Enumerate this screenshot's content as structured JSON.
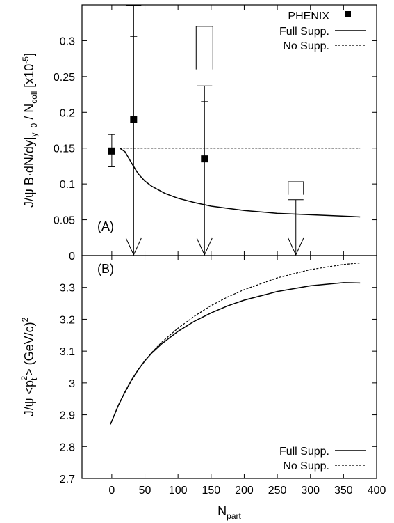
{
  "chart_data": [
    {
      "type": "scatter",
      "panel_label": "(A)",
      "ylabel": "J/ψ  B·dN/dy|y=0 / Ncoll [x10-5]",
      "ylim": [
        0,
        0.35
      ],
      "xlim": [
        -45,
        400
      ],
      "y_ticks": [
        "0",
        "0.05",
        "0.1",
        "0.15",
        "0.2",
        "0.25",
        "0.3"
      ],
      "legend_position": "top-right",
      "series": [
        {
          "name": "PHENIX",
          "kind": "points",
          "points": [
            {
              "x": 0,
              "y": 0.146,
              "err_low": 0.124,
              "err_high": 0.169,
              "type": "point"
            },
            {
              "x": 33,
              "y": 0.19,
              "err_low": 0.306,
              "err_high": 0.349,
              "type": "point-upper-error"
            },
            {
              "x": 140,
              "y": 0.135,
              "err_low": 0.215,
              "err_high": 0.237,
              "type": "point-upper-error"
            },
            {
              "x": 140,
              "upper_limit": 0.237,
              "sys_low": 0.26,
              "sys_high": 0.32,
              "type": "upper-limit"
            },
            {
              "x": 33,
              "upper_limit": 0.349,
              "type": "upper-limit"
            },
            {
              "x": 278,
              "upper_limit": 0.078,
              "sys_low": 0.085,
              "sys_high": 0.103,
              "type": "upper-limit"
            }
          ]
        },
        {
          "name": "Full Supp.",
          "kind": "line",
          "x": [
            12,
            20,
            30,
            40,
            50,
            60,
            80,
            100,
            125,
            150,
            200,
            250,
            300,
            350,
            375
          ],
          "y": [
            0.15,
            0.145,
            0.129,
            0.114,
            0.104,
            0.097,
            0.087,
            0.08,
            0.074,
            0.069,
            0.063,
            0.059,
            0.057,
            0.055,
            0.054
          ]
        },
        {
          "name": "No Supp.",
          "kind": "line",
          "x": [
            12,
            375
          ],
          "y": [
            0.15,
            0.15
          ]
        }
      ]
    },
    {
      "type": "line",
      "panel_label": "(B)",
      "ylabel": "J/ψ <pt2> (GeV/c)2",
      "xlabel": "Npart",
      "xlim": [
        -45,
        400
      ],
      "ylim": [
        2.7,
        3.4
      ],
      "x_ticks": [
        "0",
        "50",
        "100",
        "150",
        "200",
        "250",
        "300",
        "350",
        "400"
      ],
      "y_ticks": [
        "2.7",
        "2.8",
        "2.9",
        "3",
        "3.1",
        "3.2",
        "3.3"
      ],
      "legend_position": "bottom-right",
      "series": [
        {
          "name": "Full Supp.",
          "x": [
            -2,
            10,
            20,
            30,
            40,
            50,
            60,
            75,
            100,
            125,
            150,
            175,
            200,
            250,
            300,
            350,
            375
          ],
          "y": [
            2.87,
            2.93,
            2.972,
            3.01,
            3.042,
            3.07,
            3.093,
            3.122,
            3.162,
            3.194,
            3.22,
            3.242,
            3.26,
            3.287,
            3.305,
            3.315,
            3.314
          ]
        },
        {
          "name": "No Supp.",
          "x": [
            -2,
            10,
            20,
            30,
            40,
            50,
            60,
            75,
            100,
            125,
            150,
            175,
            200,
            250,
            300,
            350,
            375
          ],
          "y": [
            2.87,
            2.93,
            2.97,
            3.008,
            3.04,
            3.069,
            3.095,
            3.127,
            3.172,
            3.21,
            3.243,
            3.27,
            3.293,
            3.33,
            3.356,
            3.372,
            3.377
          ]
        }
      ]
    }
  ]
}
